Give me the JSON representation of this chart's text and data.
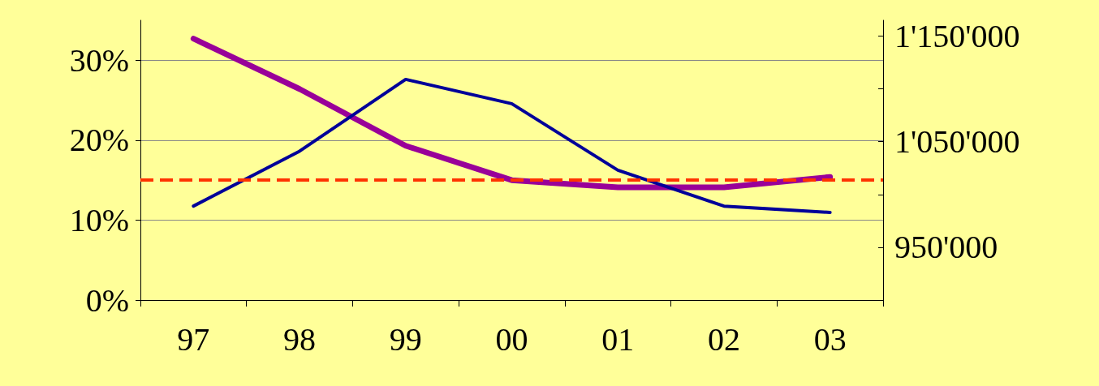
{
  "chart_data": {
    "type": "line",
    "categories": [
      "97",
      "98",
      "99",
      "00",
      "01",
      "02",
      "03"
    ],
    "series": [
      {
        "color": "#990099",
        "values": [
          32.7,
          26.4,
          19.3,
          15.0,
          14.1,
          14.1,
          15.4
        ]
      },
      {
        "color": "#000099",
        "axis": "y2",
        "values": [
          989000,
          1041000,
          1109000,
          1086000,
          1023000,
          989000,
          983000
        ]
      }
    ],
    "ylim": [
      0,
      35
    ],
    "yticks": [
      {
        "value": 0,
        "label": "0%"
      },
      {
        "value": 10,
        "label": "10%"
      },
      {
        "value": 20,
        "label": "20%"
      },
      {
        "value": 30,
        "label": "30%"
      }
    ],
    "y2lim": [
      900000,
      1165000
    ],
    "y2ticks": [
      {
        "value": 900000,
        "label": null
      },
      {
        "value": 950000,
        "label": "950'000"
      },
      {
        "value": 1000000,
        "label": null
      },
      {
        "value": 1050000,
        "label": "1'050'000"
      },
      {
        "value": 1100000,
        "label": null
      },
      {
        "value": 1150000,
        "label": "1'150'000"
      }
    ],
    "ref_lines": [
      {
        "axis": "y",
        "value": 15,
        "label": null,
        "color": "#ff3300",
        "line_style": "dashed"
      }
    ],
    "grid": "y",
    "marker": "none",
    "line_style": "solid"
  }
}
